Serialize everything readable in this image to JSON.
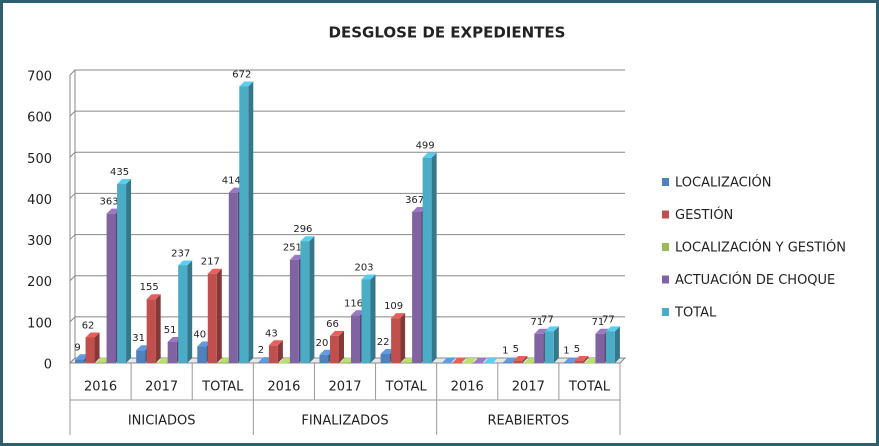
{
  "chart_data": {
    "type": "bar3d",
    "title": "DESGLOSE DE EXPEDIENTES",
    "categories": [
      "2016",
      "2017",
      "TOTAL",
      "2016",
      "2017",
      "TOTAL",
      "2016",
      "2017",
      "TOTAL"
    ],
    "groups": [
      "INICIADOS",
      "FINALIZADOS",
      "REABIERTOS"
    ],
    "series": [
      {
        "name": "LOCALIZACIÓN",
        "color": "#4f81bd",
        "data_labels": true,
        "values": [
          9,
          31,
          40,
          2,
          20,
          22,
          0,
          1,
          1
        ]
      },
      {
        "name": "GESTIÓN",
        "color": "#c0504d",
        "data_labels": true,
        "values": [
          62,
          155,
          217,
          43,
          66,
          109,
          0,
          5,
          5
        ]
      },
      {
        "name": "LOCALIZACIÓN Y GESTIÓN",
        "color": "#9bbb59",
        "data_labels": false,
        "values": [
          1,
          0,
          1,
          0,
          1,
          1,
          0,
          0,
          0
        ]
      },
      {
        "name": "ACTUACIÓN DE CHOQUE",
        "color": "#8064a2",
        "data_labels": true,
        "values": [
          363,
          51,
          414,
          251,
          116,
          367,
          0,
          71,
          71
        ]
      },
      {
        "name": "TOTAL",
        "color": "#4bacc6",
        "data_labels": true,
        "values": [
          435,
          237,
          672,
          296,
          203,
          499,
          0,
          77,
          77
        ]
      }
    ],
    "ylim": [
      0,
      700
    ],
    "yticks": [
      0,
      100,
      200,
      300,
      400,
      500,
      600,
      700
    ],
    "grid": true,
    "legend": "right"
  }
}
